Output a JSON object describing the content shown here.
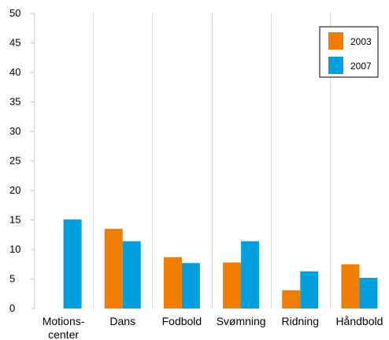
{
  "chart_data": {
    "type": "bar",
    "categories": [
      [
        "Motions-",
        "center"
      ],
      [
        "Dans"
      ],
      [
        "Fodbold"
      ],
      [
        "Svømning"
      ],
      [
        "Ridning"
      ],
      [
        "Håndbold"
      ]
    ],
    "series": [
      {
        "name": "2003",
        "color": "#f07d00",
        "values": [
          0,
          13.5,
          8.7,
          7.8,
          3.1,
          7.5
        ]
      },
      {
        "name": "2007",
        "color": "#009fde",
        "values": [
          15.1,
          11.4,
          7.7,
          11.4,
          6.3,
          5.2
        ]
      }
    ],
    "y_ticks": [
      0,
      5,
      10,
      15,
      20,
      25,
      30,
      35,
      40,
      45,
      50
    ],
    "y_tick_labels": [
      "0",
      "5",
      "10",
      "15",
      "20",
      "25",
      "30",
      "35",
      "40",
      "45",
      "50"
    ],
    "ylim": [
      0,
      50
    ],
    "grid": "vertical gridlines",
    "legend_position": "top-right"
  }
}
